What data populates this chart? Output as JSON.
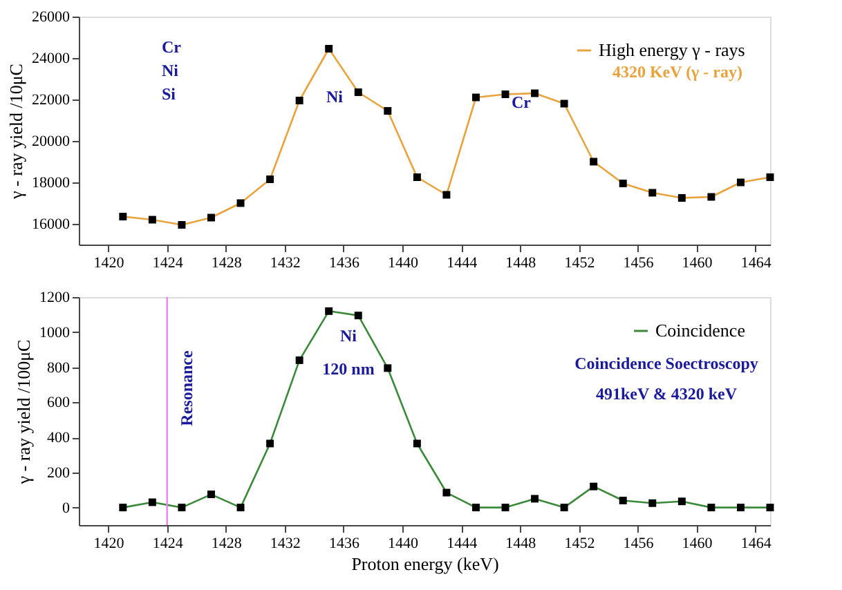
{
  "chart_data": [
    {
      "type": "line",
      "ylabel": "γ - ray yield /10μC",
      "x": [
        1421,
        1423,
        1425,
        1427,
        1429,
        1431,
        1433,
        1435,
        1437,
        1439,
        1441,
        1443,
        1445,
        1447,
        1449,
        1451,
        1453,
        1455,
        1457,
        1459,
        1461,
        1463,
        1465
      ],
      "series": [
        {
          "name": "High energy γ - rays",
          "color": "#e8a33d",
          "values": [
            16350,
            16200,
            15950,
            16300,
            17000,
            18150,
            21950,
            24450,
            22350,
            21450,
            18250,
            17400,
            22100,
            22250,
            22300,
            21800,
            19000,
            17950,
            17500,
            17250,
            17300,
            18000,
            18250
          ]
        }
      ],
      "xlim": [
        1418,
        1465
      ],
      "xticks": [
        1420,
        1424,
        1428,
        1432,
        1436,
        1440,
        1444,
        1448,
        1452,
        1456,
        1460,
        1464
      ],
      "ylim": [
        15000,
        26000
      ],
      "yticks": [
        16000,
        18000,
        20000,
        22000,
        24000,
        26000
      ],
      "marker": "square",
      "grid": false,
      "legend": "top right",
      "annotations": [
        "Ni",
        "Cr",
        "4320 KeV (γ - ray)",
        "Cr",
        "Ni",
        "Si"
      ]
    },
    {
      "type": "line",
      "xlabel": "Proton energy (keV)",
      "ylabel": "γ - ray yield /100μC",
      "x": [
        1421,
        1423,
        1425,
        1427,
        1429,
        1431,
        1433,
        1435,
        1437,
        1439,
        1441,
        1443,
        1445,
        1447,
        1449,
        1451,
        1453,
        1455,
        1457,
        1459,
        1461,
        1463,
        1465
      ],
      "series": [
        {
          "name": "Coincidence",
          "color": "#3a8a3a",
          "values": [
            0,
            30,
            0,
            75,
            0,
            365,
            840,
            1120,
            1095,
            795,
            365,
            85,
            0,
            0,
            50,
            0,
            120,
            40,
            25,
            35,
            0,
            0,
            0
          ]
        }
      ],
      "xlim": [
        1418,
        1465
      ],
      "xticks": [
        1420,
        1424,
        1428,
        1432,
        1436,
        1440,
        1444,
        1448,
        1452,
        1456,
        1460,
        1464
      ],
      "ylim": [
        -100,
        1200
      ],
      "yticks": [
        0,
        200,
        400,
        600,
        800,
        1000,
        1200
      ],
      "marker": "square",
      "grid": false,
      "legend": "top right",
      "ref_lines": [
        {
          "axis": "x",
          "value": 1424,
          "label": "Resonance",
          "color": "#ee82ee"
        }
      ],
      "annotations": [
        "Ni",
        "120 nm",
        "Coincidence Soectroscopy",
        "491keV & 4320 keV"
      ]
    }
  ]
}
